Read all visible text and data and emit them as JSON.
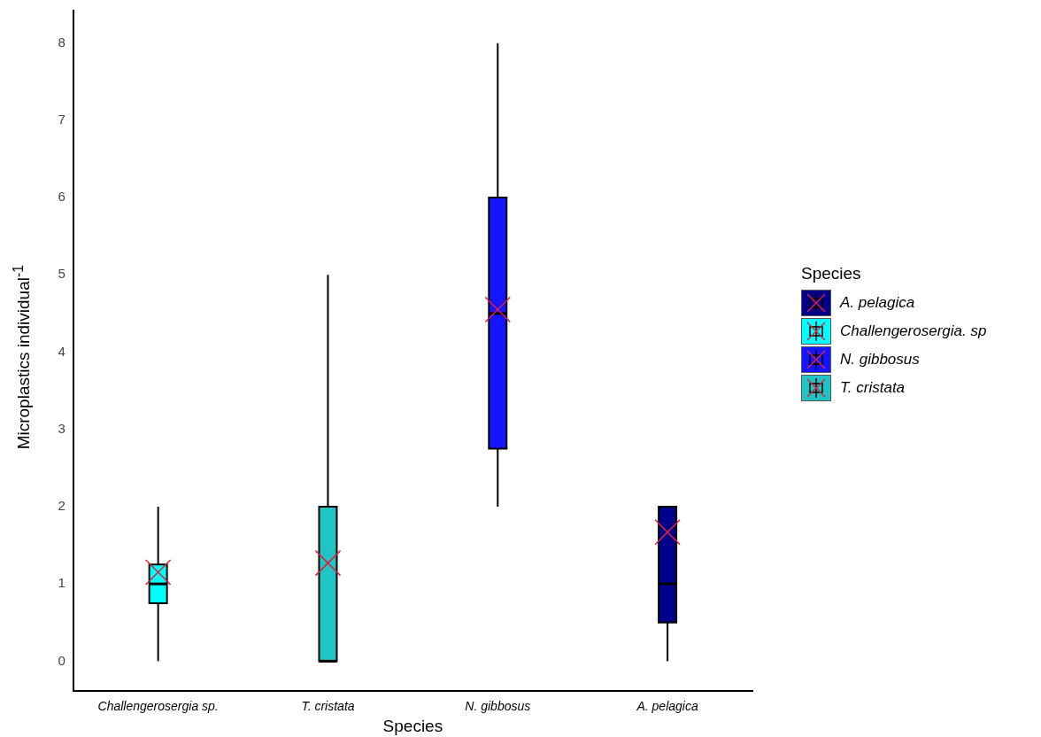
{
  "chart_data": {
    "type": "box",
    "xlabel": "Species",
    "ylabel": "Microplastics individual$^{-1}$",
    "legend_title": "Species",
    "legend": "right",
    "grid": false,
    "categories": [
      "Challengerosergia sp.",
      "T. cristata",
      "N. gibbosus",
      "A. pelagica"
    ],
    "ylim": [
      -0.39,
      8.42
    ],
    "yticks": [
      0,
      1,
      2,
      3,
      4,
      5,
      6,
      7,
      8
    ],
    "series": [
      {
        "name": "A. pelagica",
        "color": "#00008b",
        "boxes": [
          null,
          null,
          null,
          {
            "low": 0,
            "q1": 0.5,
            "median": 1,
            "q3": 2,
            "high": 2,
            "mean": 1.67
          }
        ]
      },
      {
        "name": "Challengerosergia. sp",
        "color": "#00ffff",
        "boxes": [
          {
            "low": 0,
            "q1": 0.75,
            "median": 1,
            "q3": 1.25,
            "high": 2,
            "mean": 1.15
          },
          null,
          null,
          null
        ]
      },
      {
        "name": "N. gibbosus",
        "color": "#1414ff",
        "boxes": [
          null,
          null,
          {
            "low": 2,
            "q1": 2.75,
            "median": 4.5,
            "q3": 6,
            "high": 8,
            "mean": 4.55
          },
          null
        ]
      },
      {
        "name": "T. cristata",
        "color": "#1fc5c5",
        "boxes": [
          null,
          {
            "low": 0,
            "q1": 0,
            "median": 0,
            "q3": 2,
            "high": 5,
            "mean": 1.27
          },
          null,
          null
        ]
      }
    ]
  }
}
